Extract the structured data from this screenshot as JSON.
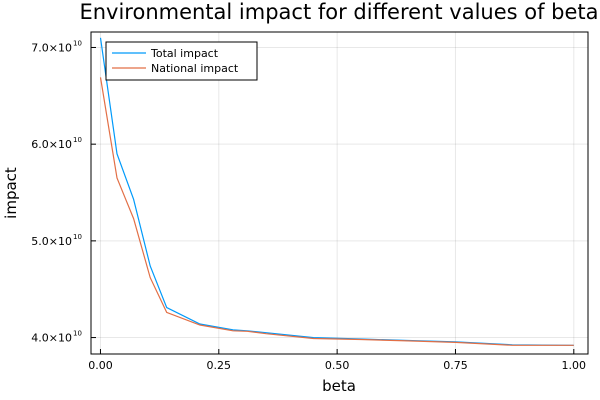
{
  "chart_data": {
    "type": "line",
    "title": "Environmental impact for different values of beta",
    "xlabel": "beta",
    "ylabel": "impact",
    "xlim": [
      -0.02,
      1.03
    ],
    "ylim": [
      38300000000,
      71600000000
    ],
    "x_ticks": [
      {
        "value": 0.0,
        "label": "0.00"
      },
      {
        "value": 0.25,
        "label": "0.25"
      },
      {
        "value": 0.5,
        "label": "0.50"
      },
      {
        "value": 0.75,
        "label": "0.75"
      },
      {
        "value": 1.0,
        "label": "1.00"
      }
    ],
    "y_ticks": [
      {
        "value": 40000000000,
        "mantissa": "4.0×10",
        "exp": "10"
      },
      {
        "value": 50000000000,
        "mantissa": "5.0×10",
        "exp": "10"
      },
      {
        "value": 60000000000,
        "mantissa": "6.0×10",
        "exp": "10"
      },
      {
        "value": 70000000000,
        "mantissa": "7.0×10",
        "exp": "10"
      }
    ],
    "grid": true,
    "legend_position": "top-left",
    "series": [
      {
        "name": "Total impact",
        "color": "#009AFA",
        "x": [
          0.0,
          0.035,
          0.07,
          0.105,
          0.14,
          0.21,
          0.28,
          0.31,
          0.35,
          0.45,
          0.55,
          0.65,
          0.75,
          0.87,
          1.0
        ],
        "y": [
          71000000000,
          59000000000,
          54300000000,
          47400000000,
          43100000000,
          41400000000,
          40800000000,
          40700000000,
          40500000000,
          40000000000,
          39850000000,
          39700000000,
          39550000000,
          39250000000,
          39200000000
        ]
      },
      {
        "name": "National impact",
        "color": "#E26F46",
        "x": [
          0.0,
          0.035,
          0.07,
          0.105,
          0.14,
          0.21,
          0.28,
          0.31,
          0.35,
          0.45,
          0.55,
          0.65,
          0.75,
          0.87,
          1.0
        ],
        "y": [
          66900000000,
          56500000000,
          52300000000,
          46200000000,
          42600000000,
          41300000000,
          40700000000,
          40650000000,
          40400000000,
          39900000000,
          39800000000,
          39650000000,
          39500000000,
          39200000000,
          39200000000
        ]
      }
    ]
  }
}
